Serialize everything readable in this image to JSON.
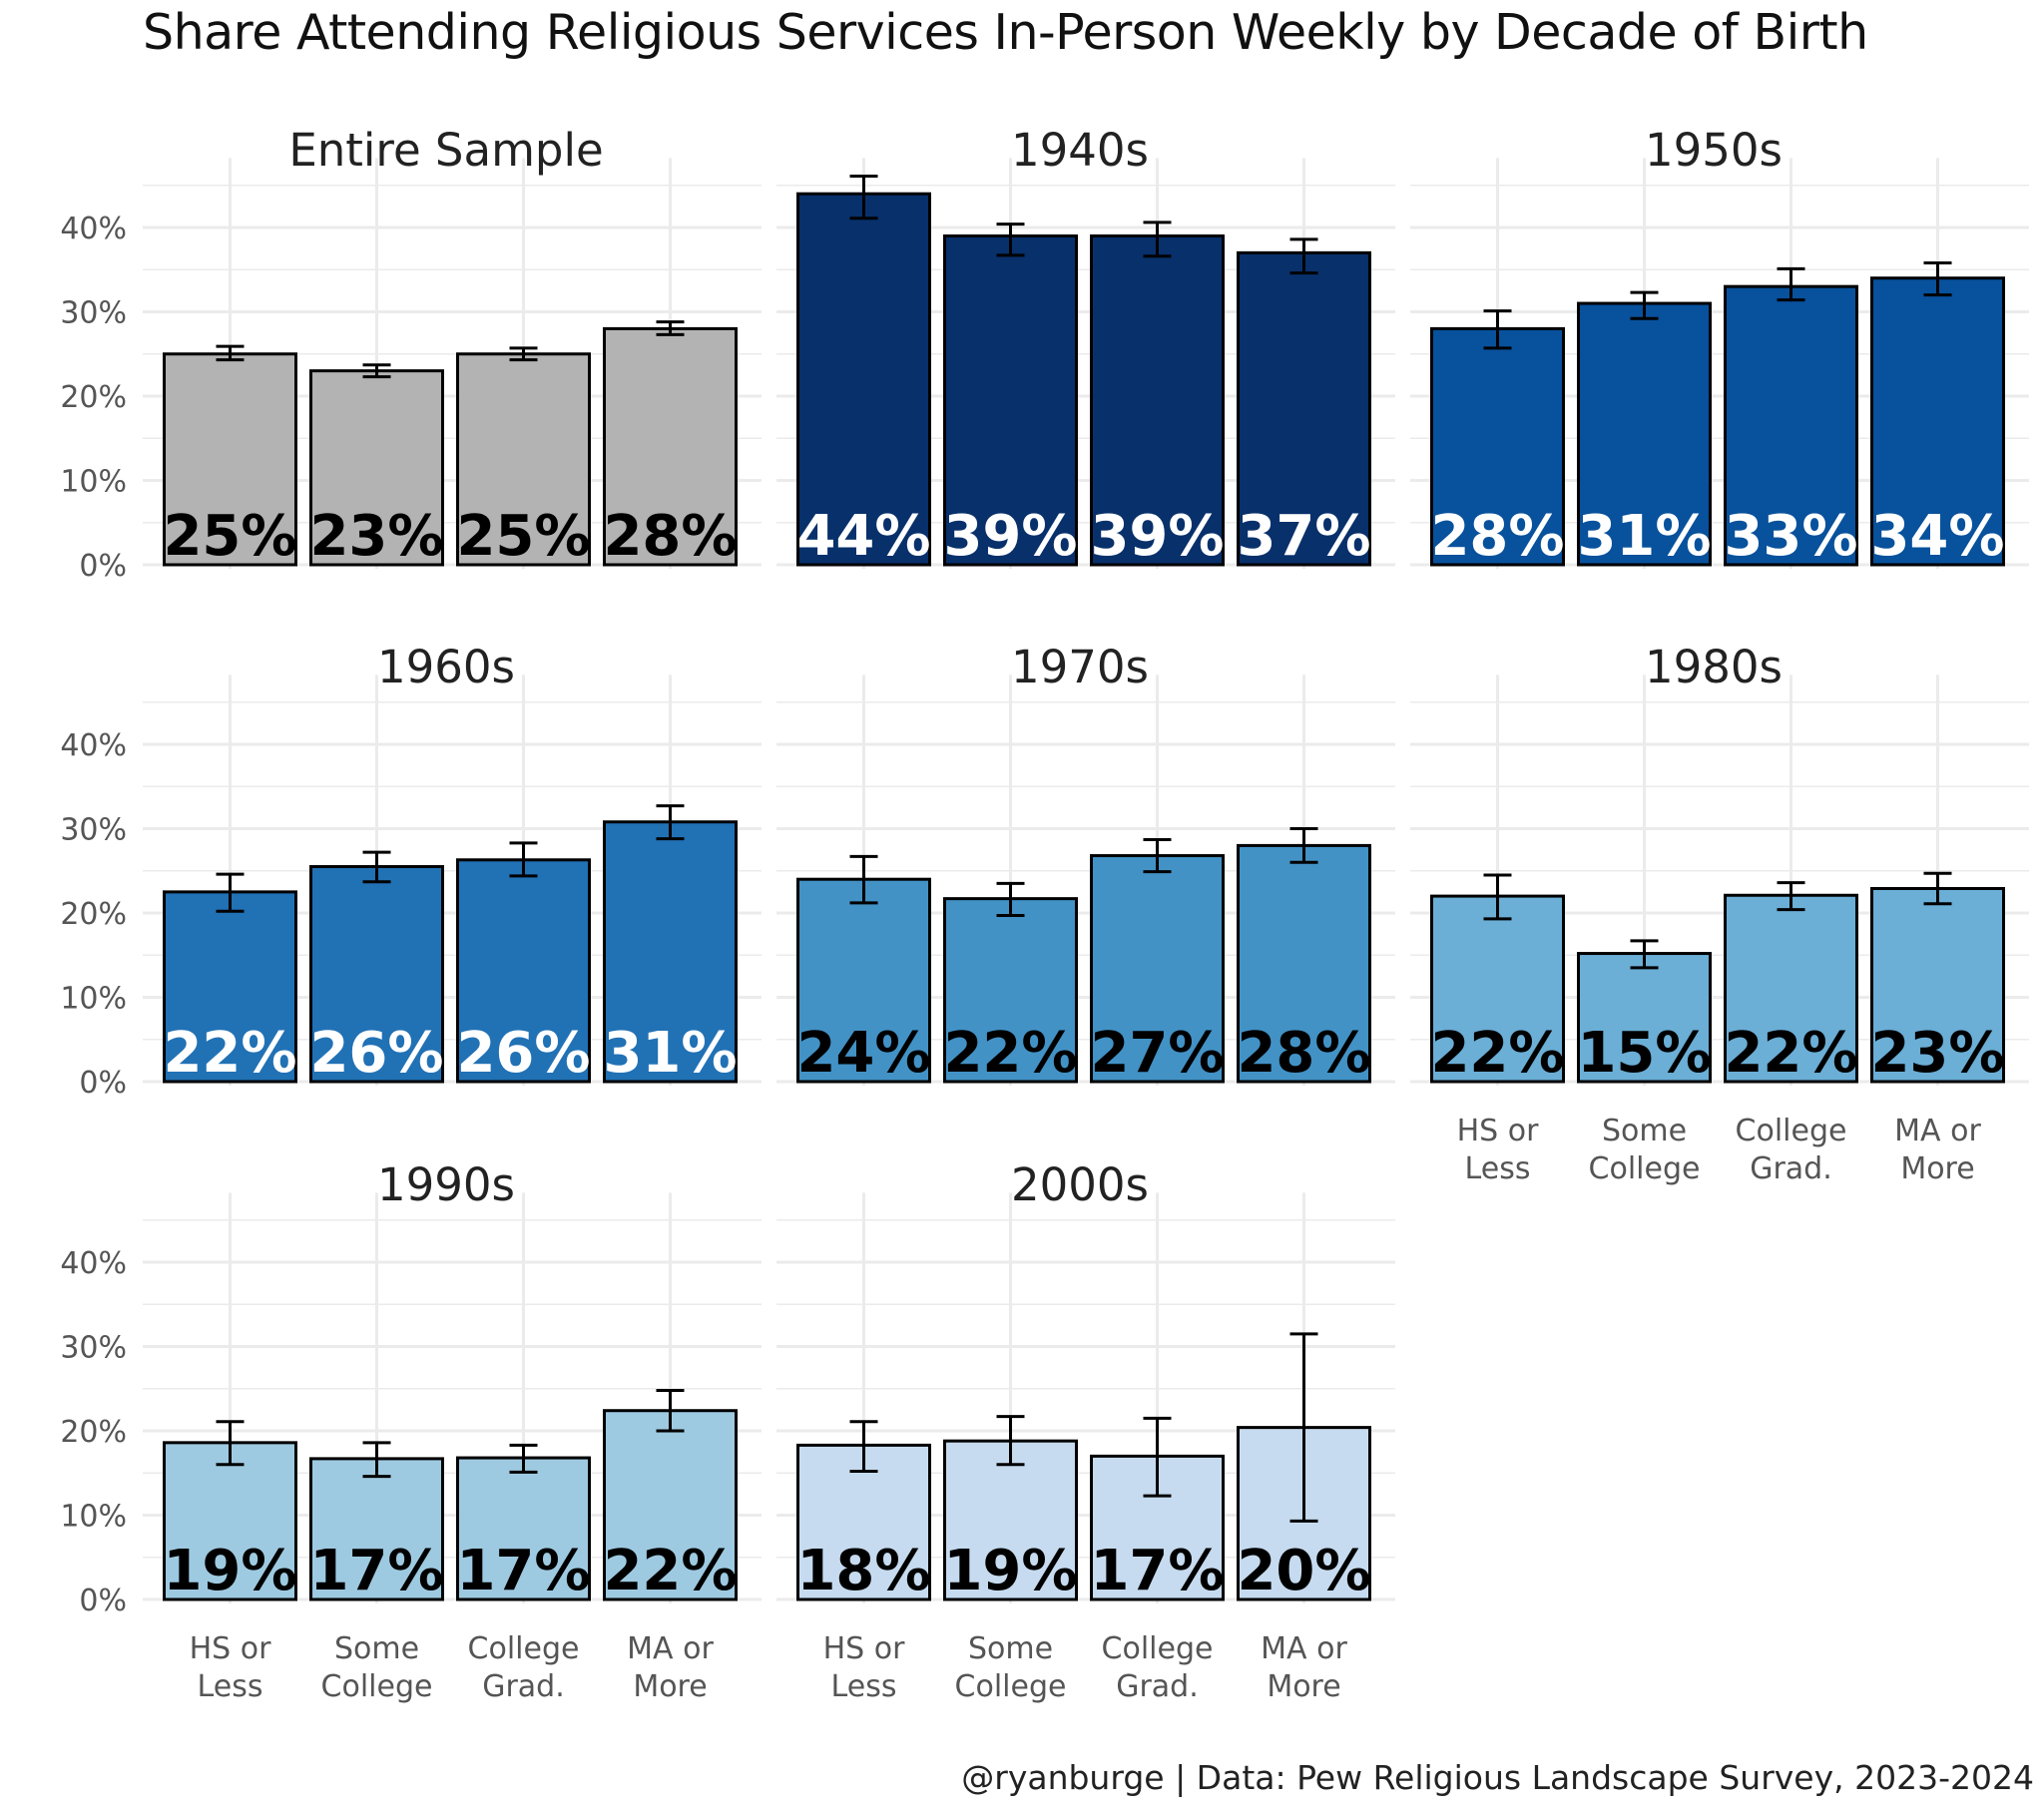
{
  "chart_data": {
    "type": "bar",
    "title": "Share Attending Religious Services In-Person Weekly by Decade of Birth",
    "caption": "@ryanburge | Data: Pew Religious Landscape Survey, 2023-2024",
    "xlabel": "",
    "ylabel": "",
    "ylim": [
      0,
      0.48
    ],
    "y_ticks": [
      "0%",
      "10%",
      "20%",
      "30%",
      "40%"
    ],
    "grid": true,
    "categories": [
      "HS or Less",
      "Some College",
      "College Grad.",
      "MA or More"
    ],
    "category_lines": [
      [
        "HS or",
        "Less"
      ],
      [
        "Some",
        "College"
      ],
      [
        "College",
        "Grad."
      ],
      [
        "MA or",
        "More"
      ]
    ],
    "facets": [
      {
        "name": "Entire Sample",
        "fill": "#b3b3b3",
        "label_color": "#000000",
        "values": [
          0.25,
          0.23,
          0.25,
          0.28
        ],
        "labels": [
          "25%",
          "23%",
          "25%",
          "28%"
        ],
        "ci_low": [
          0.243,
          0.223,
          0.243,
          0.273
        ],
        "ci_high": [
          0.259,
          0.237,
          0.257,
          0.288
        ]
      },
      {
        "name": "1940s",
        "fill": "#08306b",
        "label_color": "#ffffff",
        "values": [
          0.44,
          0.39,
          0.39,
          0.37
        ],
        "labels": [
          "44%",
          "39%",
          "39%",
          "37%"
        ],
        "ci_low": [
          0.411,
          0.367,
          0.366,
          0.346
        ],
        "ci_high": [
          0.461,
          0.404,
          0.406,
          0.386
        ]
      },
      {
        "name": "1950s",
        "fill": "#08519c",
        "label_color": "#ffffff",
        "values": [
          0.28,
          0.31,
          0.33,
          0.34
        ],
        "labels": [
          "28%",
          "31%",
          "33%",
          "34%"
        ],
        "ci_low": [
          0.257,
          0.292,
          0.314,
          0.32
        ],
        "ci_high": [
          0.301,
          0.323,
          0.351,
          0.358
        ]
      },
      {
        "name": "1960s",
        "fill": "#2171b5",
        "label_color": "#ffffff",
        "values": [
          0.225,
          0.255,
          0.263,
          0.308
        ],
        "labels": [
          "22%",
          "26%",
          "26%",
          "31%"
        ],
        "ci_low": [
          0.202,
          0.237,
          0.244,
          0.288
        ],
        "ci_high": [
          0.246,
          0.272,
          0.283,
          0.327
        ]
      },
      {
        "name": "1970s",
        "fill": "#4292c6",
        "label_color": "#000000",
        "values": [
          0.24,
          0.217,
          0.268,
          0.28
        ],
        "labels": [
          "24%",
          "22%",
          "27%",
          "28%"
        ],
        "ci_low": [
          0.212,
          0.197,
          0.249,
          0.26
        ],
        "ci_high": [
          0.267,
          0.235,
          0.287,
          0.3
        ]
      },
      {
        "name": "1980s",
        "fill": "#6baed6",
        "label_color": "#000000",
        "values": [
          0.22,
          0.152,
          0.221,
          0.229
        ],
        "labels": [
          "22%",
          "15%",
          "22%",
          "23%"
        ],
        "ci_low": [
          0.193,
          0.135,
          0.204,
          0.211
        ],
        "ci_high": [
          0.245,
          0.167,
          0.236,
          0.247
        ]
      },
      {
        "name": "1990s",
        "fill": "#9ecae1",
        "label_color": "#000000",
        "values": [
          0.186,
          0.167,
          0.168,
          0.224
        ],
        "labels": [
          "19%",
          "17%",
          "17%",
          "22%"
        ],
        "ci_low": [
          0.16,
          0.146,
          0.151,
          0.2
        ],
        "ci_high": [
          0.211,
          0.186,
          0.183,
          0.248
        ]
      },
      {
        "name": "2000s",
        "fill": "#c6dbef",
        "label_color": "#000000",
        "values": [
          0.183,
          0.188,
          0.17,
          0.204
        ],
        "labels": [
          "18%",
          "19%",
          "17%",
          "20%"
        ],
        "ci_low": [
          0.152,
          0.16,
          0.123,
          0.093
        ],
        "ci_high": [
          0.211,
          0.217,
          0.215,
          0.315
        ]
      }
    ]
  }
}
